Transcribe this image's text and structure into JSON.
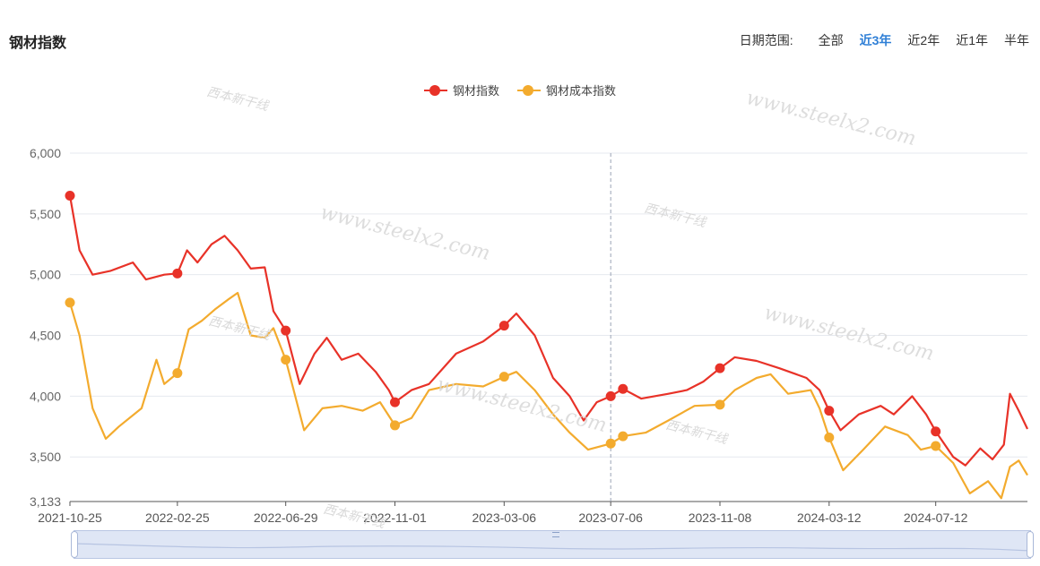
{
  "header": {
    "title": "钢材指数"
  },
  "date_range": {
    "label": "日期范围:",
    "options": [
      "全部",
      "近3年",
      "近2年",
      "近1年",
      "半年"
    ],
    "active": "近3年"
  },
  "watermarks": {
    "site": "www.steelx2.com",
    "logo_text": "西本新干线"
  },
  "colors": {
    "steel_index": "#e83228",
    "cost_index": "#f3ab2e",
    "grid": "#e6e9ef",
    "axis_text": "#666666"
  },
  "chart_data": {
    "type": "line",
    "title": "",
    "xlabel": "",
    "ylabel": "",
    "ylim": [
      3133,
      6000
    ],
    "y_ticks": [
      "6,000",
      "5,500",
      "5,000",
      "4,500",
      "4,000",
      "3,500",
      "3,133"
    ],
    "x_ticks": [
      "2021-10-25",
      "2022-02-25",
      "2022-06-29",
      "2022-11-01",
      "2023-03-06",
      "2023-07-06",
      "2023-11-08",
      "2024-03-12",
      "2024-07-12"
    ],
    "x_range": [
      "2021-10-25",
      "2024-10-25"
    ],
    "grid": true,
    "legend_position": "top-center",
    "cursor_date": "2023-07-06",
    "series": [
      {
        "name": "钢材指数",
        "points": [
          [
            "2021-10-25",
            5650
          ],
          [
            "2021-11-05",
            5200
          ],
          [
            "2021-11-20",
            5000
          ],
          [
            "2021-12-10",
            5030
          ],
          [
            "2022-01-05",
            5100
          ],
          [
            "2022-01-20",
            4960
          ],
          [
            "2022-02-10",
            5000
          ],
          [
            "2022-02-25",
            5010
          ],
          [
            "2022-03-08",
            5200
          ],
          [
            "2022-03-20",
            5100
          ],
          [
            "2022-04-05",
            5250
          ],
          [
            "2022-04-20",
            5320
          ],
          [
            "2022-05-05",
            5200
          ],
          [
            "2022-05-20",
            5050
          ],
          [
            "2022-06-05",
            5060
          ],
          [
            "2022-06-15",
            4700
          ],
          [
            "2022-06-29",
            4540
          ],
          [
            "2022-07-15",
            4100
          ],
          [
            "2022-08-01",
            4350
          ],
          [
            "2022-08-15",
            4480
          ],
          [
            "2022-09-01",
            4300
          ],
          [
            "2022-09-20",
            4350
          ],
          [
            "2022-10-10",
            4200
          ],
          [
            "2022-10-25",
            4050
          ],
          [
            "2022-11-01",
            3950
          ],
          [
            "2022-11-20",
            4050
          ],
          [
            "2022-12-10",
            4100
          ],
          [
            "2023-01-10",
            4350
          ],
          [
            "2023-02-10",
            4450
          ],
          [
            "2023-03-06",
            4580
          ],
          [
            "2023-03-20",
            4680
          ],
          [
            "2023-04-10",
            4500
          ],
          [
            "2023-05-01",
            4150
          ],
          [
            "2023-05-20",
            4000
          ],
          [
            "2023-06-05",
            3800
          ],
          [
            "2023-06-20",
            3950
          ],
          [
            "2023-07-06",
            4000
          ],
          [
            "2023-07-20",
            4060
          ],
          [
            "2023-08-10",
            3980
          ],
          [
            "2023-09-10",
            4020
          ],
          [
            "2023-10-01",
            4050
          ],
          [
            "2023-10-20",
            4120
          ],
          [
            "2023-11-08",
            4230
          ],
          [
            "2023-11-25",
            4320
          ],
          [
            "2023-12-20",
            4290
          ],
          [
            "2024-01-15",
            4230
          ],
          [
            "2024-02-15",
            4150
          ],
          [
            "2024-03-01",
            4050
          ],
          [
            "2024-03-12",
            3880
          ],
          [
            "2024-03-25",
            3720
          ],
          [
            "2024-04-15",
            3850
          ],
          [
            "2024-05-10",
            3920
          ],
          [
            "2024-05-25",
            3850
          ],
          [
            "2024-06-15",
            4000
          ],
          [
            "2024-07-01",
            3850
          ],
          [
            "2024-07-12",
            3710
          ],
          [
            "2024-08-01",
            3500
          ],
          [
            "2024-08-15",
            3430
          ],
          [
            "2024-09-01",
            3570
          ],
          [
            "2024-09-15",
            3480
          ],
          [
            "2024-09-28",
            3600
          ],
          [
            "2024-10-05",
            4020
          ],
          [
            "2024-10-15",
            3880
          ],
          [
            "2024-10-25",
            3730
          ]
        ],
        "markers": [
          "2021-10-25",
          "2022-02-25",
          "2022-06-29",
          "2022-11-01",
          "2023-03-06",
          "2023-07-06",
          "2023-07-20",
          "2023-11-08",
          "2024-03-12",
          "2024-07-12"
        ]
      },
      {
        "name": "钢材成本指数",
        "points": [
          [
            "2021-10-25",
            4770
          ],
          [
            "2021-11-05",
            4500
          ],
          [
            "2021-11-20",
            3900
          ],
          [
            "2021-12-05",
            3650
          ],
          [
            "2021-12-20",
            3750
          ],
          [
            "2022-01-15",
            3900
          ],
          [
            "2022-02-01",
            4300
          ],
          [
            "2022-02-10",
            4100
          ],
          [
            "2022-02-25",
            4190
          ],
          [
            "2022-03-10",
            4550
          ],
          [
            "2022-03-25",
            4620
          ],
          [
            "2022-04-10",
            4720
          ],
          [
            "2022-04-25",
            4800
          ],
          [
            "2022-05-05",
            4850
          ],
          [
            "2022-05-20",
            4500
          ],
          [
            "2022-06-05",
            4480
          ],
          [
            "2022-06-15",
            4560
          ],
          [
            "2022-06-29",
            4300
          ],
          [
            "2022-07-20",
            3720
          ],
          [
            "2022-08-10",
            3900
          ],
          [
            "2022-09-01",
            3920
          ],
          [
            "2022-09-25",
            3880
          ],
          [
            "2022-10-15",
            3950
          ],
          [
            "2022-11-01",
            3760
          ],
          [
            "2022-11-20",
            3820
          ],
          [
            "2022-12-10",
            4050
          ],
          [
            "2023-01-10",
            4100
          ],
          [
            "2023-02-10",
            4080
          ],
          [
            "2023-03-06",
            4160
          ],
          [
            "2023-03-20",
            4200
          ],
          [
            "2023-04-10",
            4050
          ],
          [
            "2023-05-01",
            3850
          ],
          [
            "2023-05-20",
            3700
          ],
          [
            "2023-06-10",
            3560
          ],
          [
            "2023-07-06",
            3610
          ],
          [
            "2023-07-20",
            3670
          ],
          [
            "2023-08-15",
            3700
          ],
          [
            "2023-09-10",
            3800
          ],
          [
            "2023-10-10",
            3920
          ],
          [
            "2023-11-08",
            3930
          ],
          [
            "2023-11-25",
            4050
          ],
          [
            "2023-12-20",
            4150
          ],
          [
            "2024-01-05",
            4180
          ],
          [
            "2024-01-25",
            4020
          ],
          [
            "2024-02-20",
            4050
          ],
          [
            "2024-03-01",
            3900
          ],
          [
            "2024-03-12",
            3660
          ],
          [
            "2024-03-28",
            3390
          ],
          [
            "2024-04-20",
            3560
          ],
          [
            "2024-05-15",
            3750
          ],
          [
            "2024-06-10",
            3680
          ],
          [
            "2024-06-25",
            3560
          ],
          [
            "2024-07-12",
            3590
          ],
          [
            "2024-08-01",
            3450
          ],
          [
            "2024-08-20",
            3200
          ],
          [
            "2024-09-10",
            3300
          ],
          [
            "2024-09-25",
            3160
          ],
          [
            "2024-10-05",
            3420
          ],
          [
            "2024-10-15",
            3470
          ],
          [
            "2024-10-25",
            3350
          ]
        ],
        "markers": [
          "2021-10-25",
          "2022-02-25",
          "2022-06-29",
          "2022-11-01",
          "2023-03-06",
          "2023-07-06",
          "2023-07-20",
          "2023-11-08",
          "2024-03-12",
          "2024-07-12"
        ]
      }
    ]
  }
}
